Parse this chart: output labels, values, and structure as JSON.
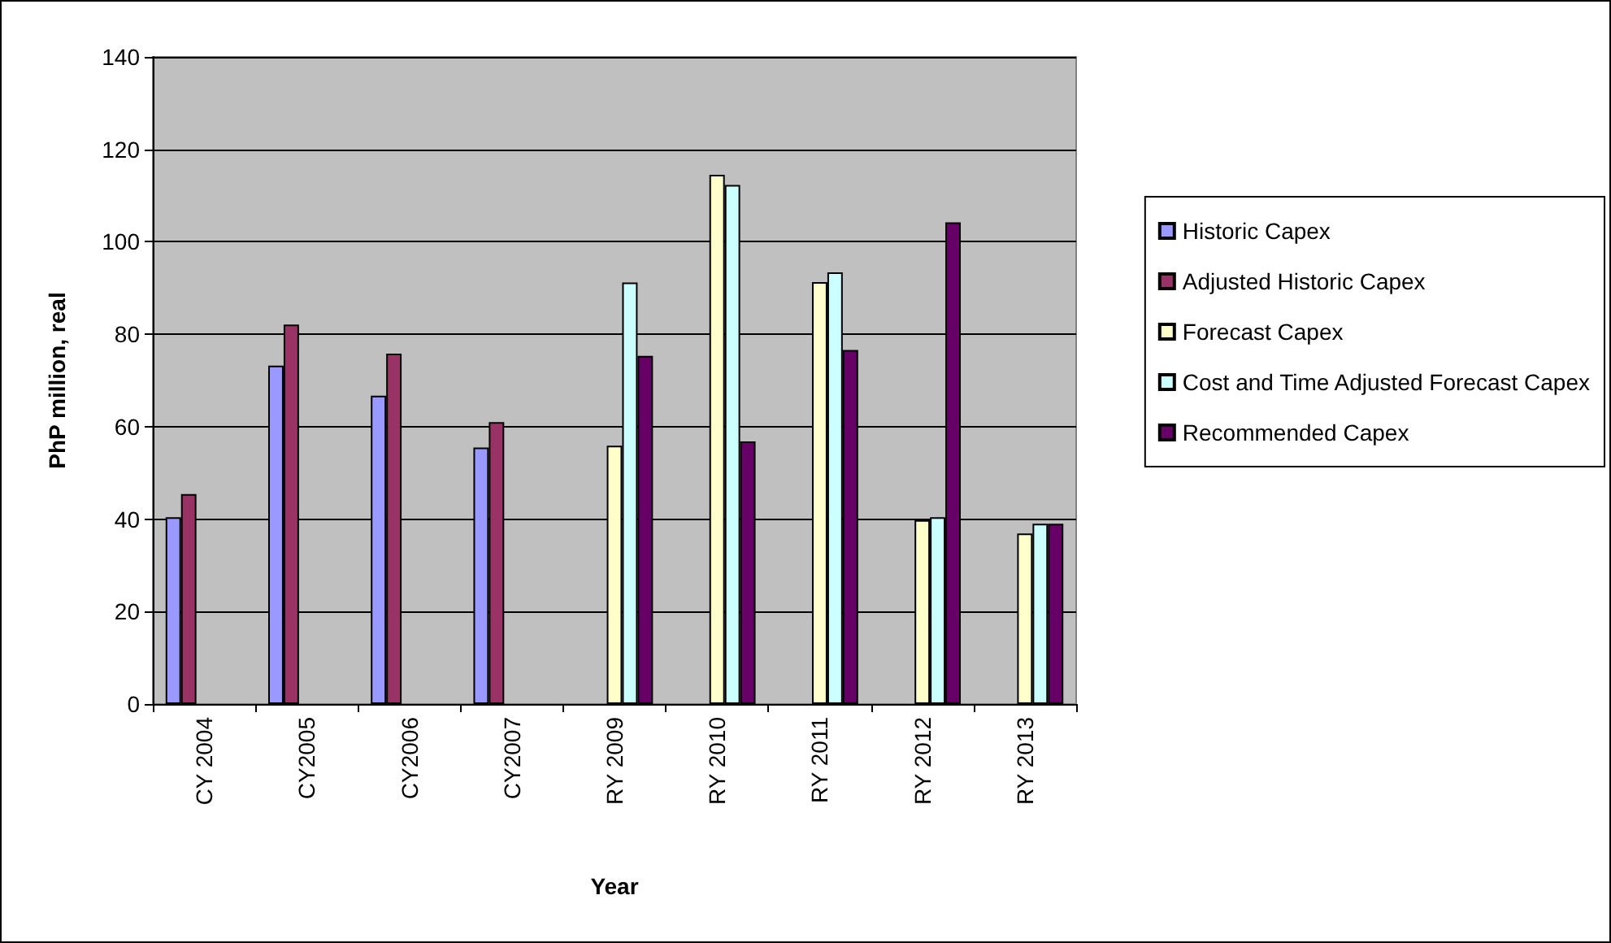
{
  "chart_data": {
    "type": "bar",
    "xlabel": "Year",
    "ylabel": "PhP million, real",
    "categories": [
      "CY 2004",
      "CY2005",
      "CY2006",
      "CY2007",
      "RY 2009",
      "RY 2010",
      "RY 2011",
      "RY 2012",
      "RY 2013"
    ],
    "series": [
      {
        "name": "Historic Capex",
        "color": "#9999ff",
        "values": [
          40.4,
          73.2,
          66.7,
          55.5,
          null,
          null,
          null,
          null,
          null
        ]
      },
      {
        "name": "Adjusted Historic Capex",
        "color": "#993366",
        "values": [
          45.4,
          82.1,
          75.8,
          61.0,
          null,
          null,
          null,
          null,
          null
        ]
      },
      {
        "name": "Forecast Capex",
        "color": "#ffffcc",
        "values": [
          null,
          null,
          null,
          null,
          55.9,
          114.5,
          91.3,
          39.8,
          36.9
        ]
      },
      {
        "name": "Cost and Time Adjusted Forecast Capex",
        "color": "#ccffff",
        "values": [
          null,
          null,
          null,
          null,
          91.2,
          112.3,
          93.4,
          40.4,
          39.0
        ]
      },
      {
        "name": "Recommended Capex",
        "color": "#660066",
        "values": [
          null,
          null,
          null,
          null,
          75.3,
          56.8,
          76.6,
          104.2,
          39.0
        ]
      }
    ],
    "ylim": [
      0,
      140
    ],
    "yticks": [
      0,
      20,
      40,
      60,
      80,
      100,
      120,
      140
    ],
    "grid": "y",
    "legend": "right"
  }
}
